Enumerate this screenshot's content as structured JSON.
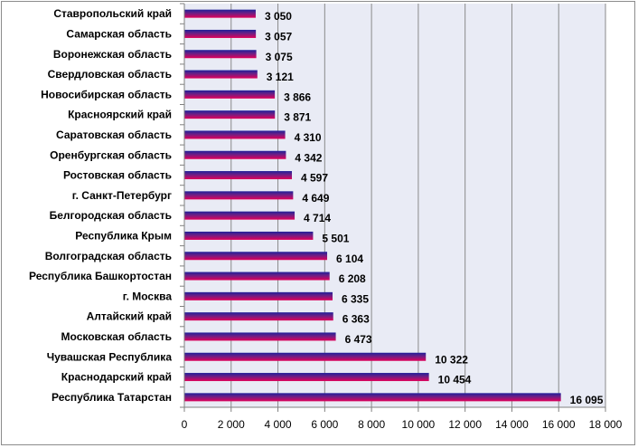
{
  "chart_data": {
    "type": "bar",
    "orientation": "horizontal",
    "categories": [
      "Ставропольский край",
      "Самарская область",
      "Воронежская область",
      "Свердловская область",
      "Новосибирская область",
      "Красноярский край",
      "Саратовская область",
      "Оренбургская область",
      "Ростовская область",
      "г. Санкт-Петербург",
      "Белгородская область",
      "Республика Крым",
      "Волгоградская область",
      "Республика Башкортостан",
      "г. Москва",
      "Алтайский край",
      "Московская область",
      "Чувашская Республика",
      "Краснодарский край",
      "Республика Татарстан"
    ],
    "values": [
      3050,
      3057,
      3075,
      3121,
      3866,
      3871,
      4310,
      4342,
      4597,
      4649,
      4714,
      5501,
      6104,
      6208,
      6335,
      6363,
      6473,
      10322,
      10454,
      16095
    ],
    "value_labels": [
      "3 050",
      "3 057",
      "3 075",
      "3 121",
      "3 866",
      "3 871",
      "4 310",
      "4 342",
      "4 597",
      "4 649",
      "4 714",
      "5 501",
      "6 104",
      "6 208",
      "6 335",
      "6 363",
      "6 473",
      "10 322",
      "10 454",
      "16 095"
    ],
    "x_ticks": [
      0,
      2000,
      4000,
      6000,
      8000,
      10000,
      12000,
      14000,
      16000,
      18000
    ],
    "x_tick_labels": [
      "0",
      "2 000",
      "4 000",
      "6 000",
      "8 000",
      "10 000",
      "12 000",
      "14 000",
      "16 000",
      "18 000"
    ],
    "xlim": [
      0,
      18000
    ],
    "title": "",
    "xlabel": "",
    "ylabel": "",
    "grid": "vertical",
    "legend": "none",
    "colors": {
      "bar_top": "#1f1f9a",
      "bar_bottom": "#e0005a",
      "plot_bg": "#e9ebf5",
      "gridline": "#8a8a8a",
      "axis": "#808080",
      "frame": "#8c8c8c"
    }
  }
}
